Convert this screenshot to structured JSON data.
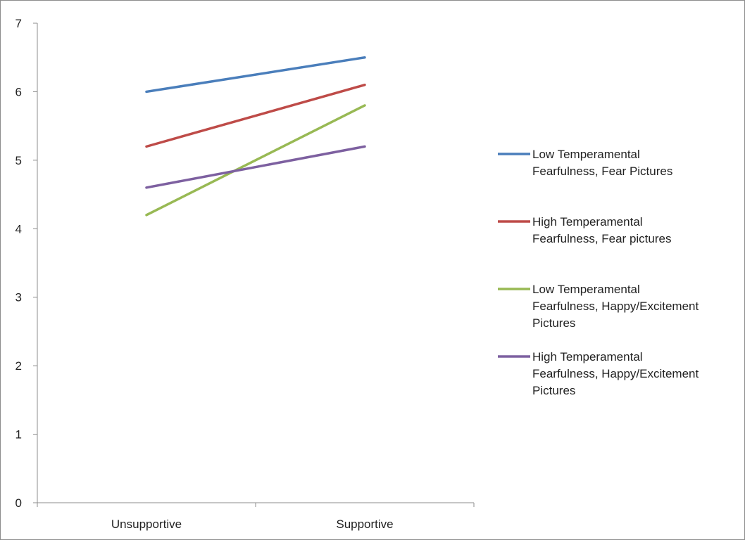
{
  "chart_data": {
    "type": "line",
    "title": "",
    "xlabel": "",
    "ylabel": "",
    "categories": [
      "Unsupportive",
      "Supportive"
    ],
    "ylim": [
      0,
      7
    ],
    "yticks": [
      0,
      1,
      2,
      3,
      4,
      5,
      6,
      7
    ],
    "grid": false,
    "legend_position": "right",
    "series": [
      {
        "name": "Low Temperamental Fearfulness, Fear Pictures",
        "legend_lines": [
          "Low Temperamental",
          "Fearfulness, Fear Pictures"
        ],
        "color": "#4a7ebb",
        "values": [
          6.0,
          6.5
        ]
      },
      {
        "name": "High Temperamental Fearfulness, Fear pictures",
        "legend_lines": [
          "High Temperamental",
          "Fearfulness, Fear pictures"
        ],
        "color": "#be4b48",
        "values": [
          5.2,
          6.1
        ]
      },
      {
        "name": "Low Temperamental Fearfulness, Happy/Excitement Pictures",
        "legend_lines": [
          "Low Temperamental",
          "Fearfulness, Happy/Excitement",
          "Pictures"
        ],
        "color": "#98b954",
        "values": [
          4.2,
          5.8
        ]
      },
      {
        "name": "High Temperamental Fearfulness, Happy/Excitement Pictures",
        "legend_lines": [
          "High Temperamental",
          "Fearfulness, Happy/Excitement",
          "Pictures"
        ],
        "color": "#7d60a0",
        "values": [
          4.6,
          5.2
        ]
      }
    ]
  }
}
